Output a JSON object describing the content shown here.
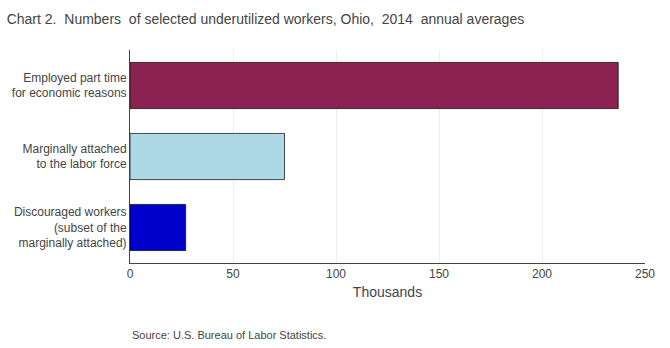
{
  "chart_data": {
    "type": "bar",
    "orientation": "horizontal",
    "title": "Chart 2.  Numbers  of selected underutilized workers, Ohio,  2014  annual averages",
    "categories": [
      "Employed part time\nfor economic reasons",
      "Marginally attached\nto the labor force",
      "Discouraged workers\n(subset of the\nmarginally attached)"
    ],
    "values": [
      237,
      75,
      27
    ],
    "colors": [
      "#8B2252",
      "#ADD8E6",
      "#0000CC"
    ],
    "xlim": [
      0,
      250
    ],
    "xticks": [
      0,
      50,
      100,
      150,
      200,
      250
    ],
    "xlabel": "Thousands",
    "annotations": [
      "Source: U.S. Bureau of Labor Statistics."
    ],
    "grid": true
  }
}
